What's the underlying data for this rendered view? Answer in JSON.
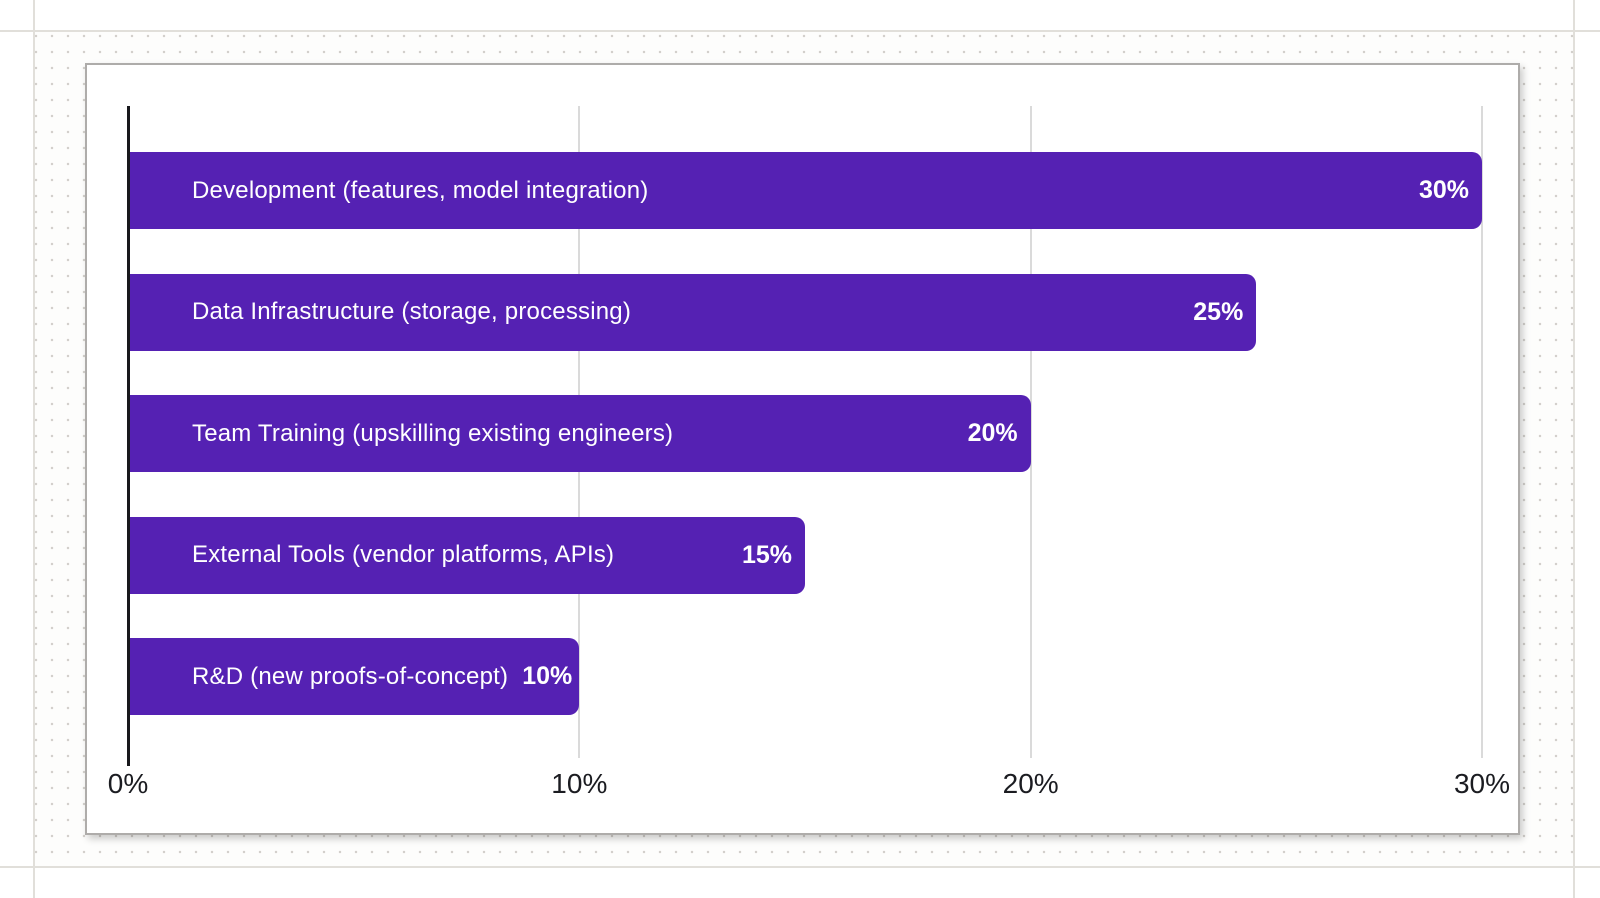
{
  "chart_data": {
    "type": "bar",
    "orientation": "horizontal",
    "title": "",
    "xlabel": "",
    "ylabel": "",
    "xlim": [
      0,
      30
    ],
    "grid": "vertical",
    "legend": "none",
    "categories": [
      "Development (features, model integration)",
      "Data Infrastructure (storage, processing)",
      "Team Training (upskilling existing engineers)",
      "External Tools (vendor platforms, APIs)",
      "R&D (new proofs-of-concept)"
    ],
    "values": [
      30,
      25,
      20,
      15,
      10
    ],
    "value_labels": [
      "30%",
      "25%",
      "20%",
      "15%",
      "10%"
    ],
    "x_ticks": [
      {
        "label": "0%",
        "value": 0
      },
      {
        "label": "10%",
        "value": 10
      },
      {
        "label": "20%",
        "value": 20
      },
      {
        "label": "30%",
        "value": 30
      }
    ]
  },
  "colors": {
    "bar_fill": "#5521b3",
    "bar_text": "#ffffff",
    "axis_line": "#18181c",
    "gridline": "#dadada",
    "tick_text": "#1b1c21",
    "card_border": "#aeacaa",
    "canvas_dot": "#d3d0cc",
    "guide_line": "#e1dfda"
  }
}
